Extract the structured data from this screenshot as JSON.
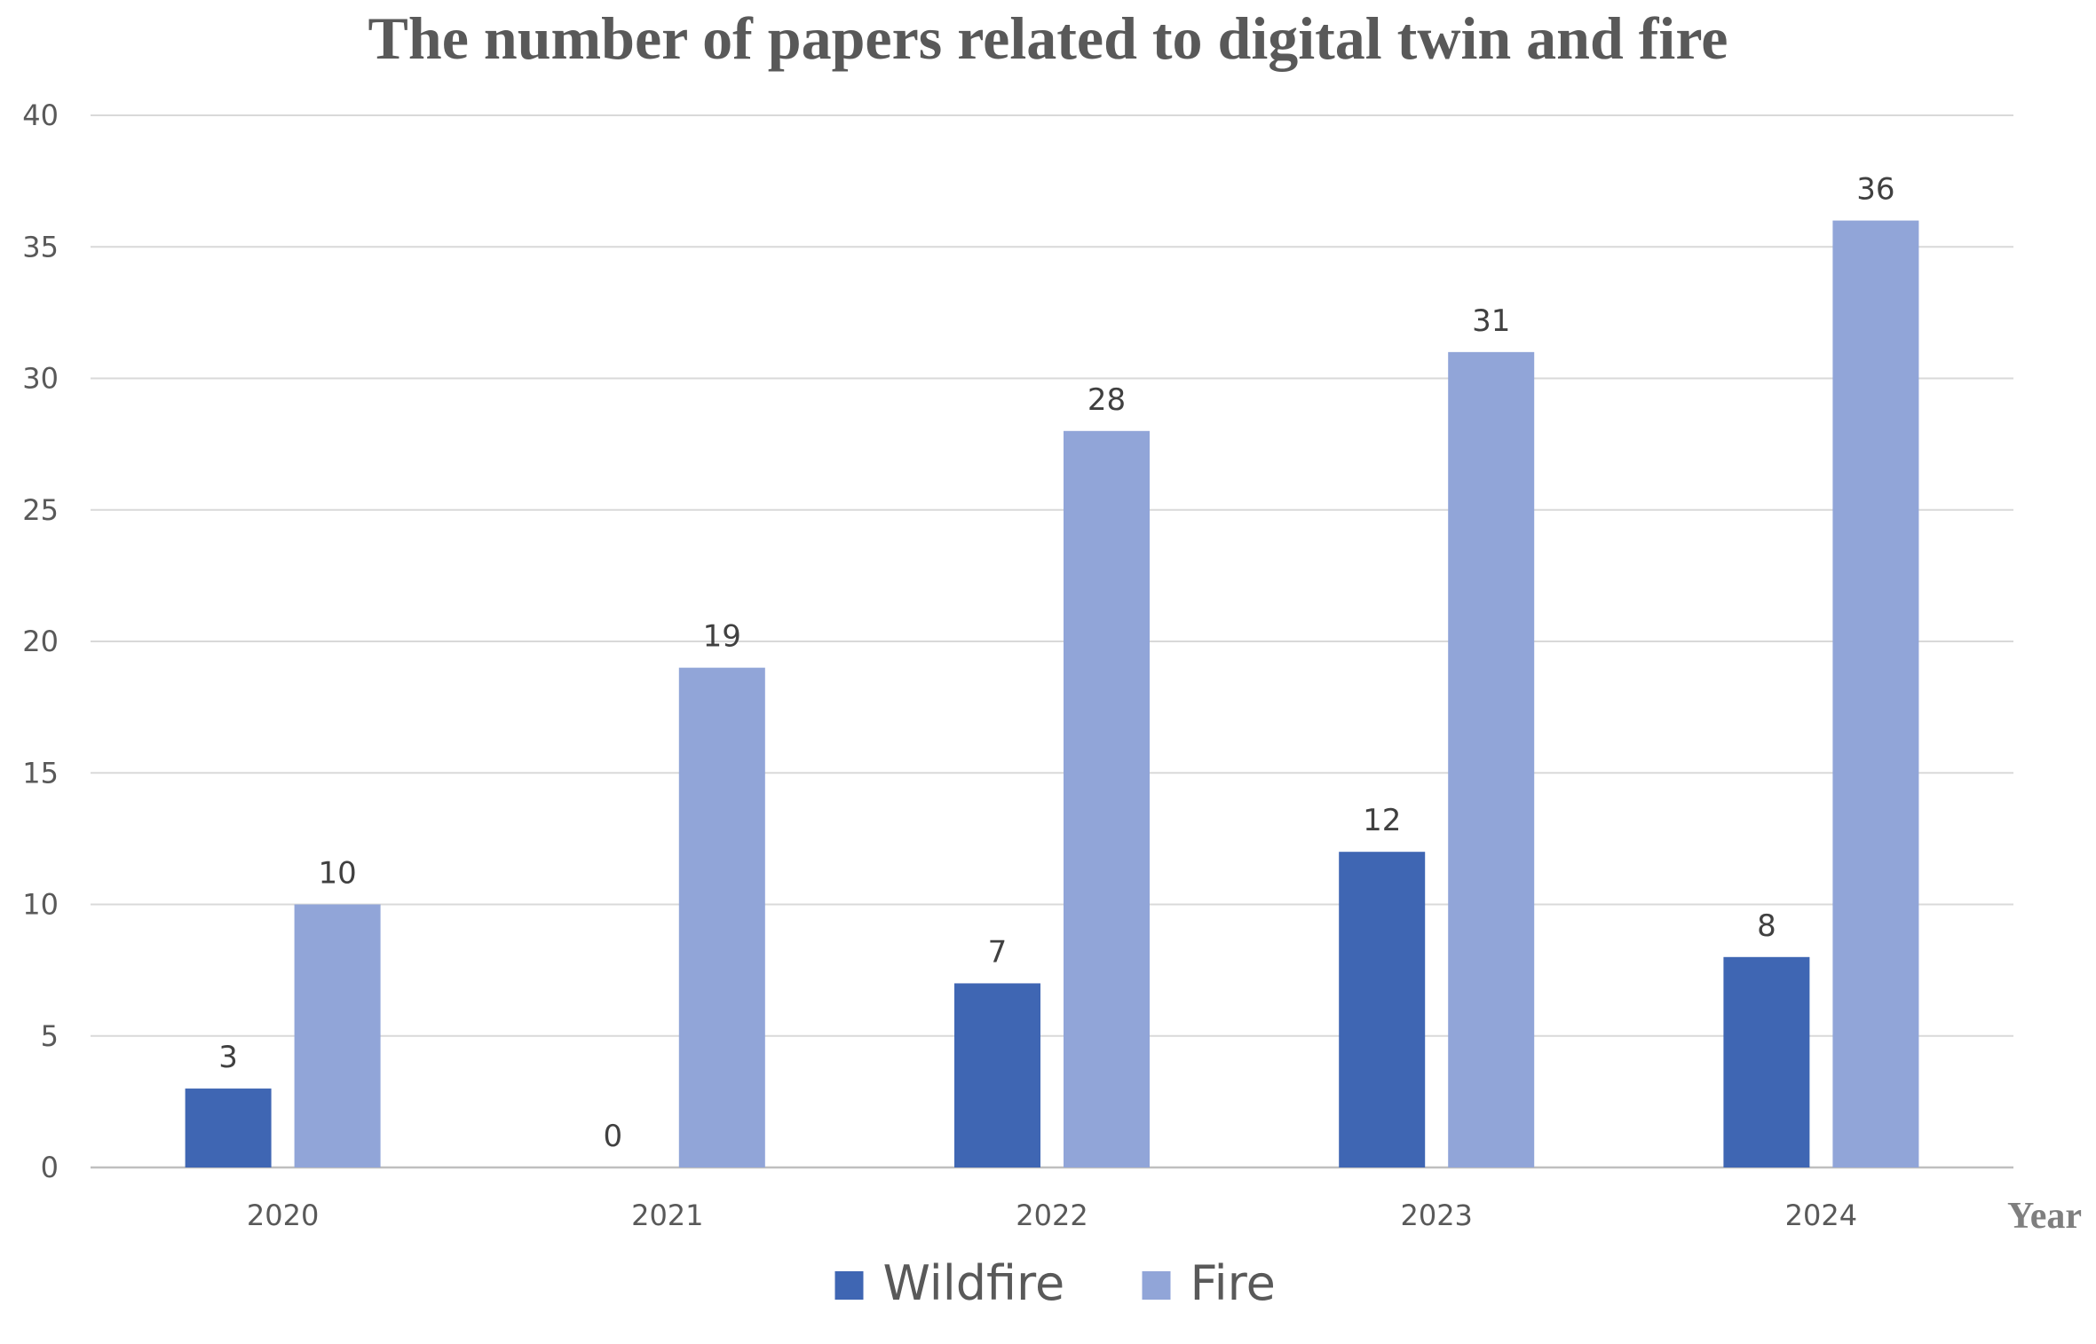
{
  "chart_data": {
    "type": "bar",
    "title": "The number of papers related to digital twin and fire",
    "xlabel": "Year",
    "ylabel": "",
    "categories": [
      "2020",
      "2021",
      "2022",
      "2023",
      "2024"
    ],
    "series": [
      {
        "name": "Wildfire",
        "values": [
          3,
          0,
          7,
          12,
          8
        ],
        "color": "#3f66b3"
      },
      {
        "name": "Fire",
        "values": [
          10,
          19,
          28,
          31,
          36
        ],
        "color": "#91a5d8"
      }
    ],
    "ylim": [
      0,
      40
    ],
    "yticks": [
      0,
      5,
      10,
      15,
      20,
      25,
      30,
      35,
      40
    ],
    "grid": true,
    "legend": "bottom-center",
    "data_labels": true
  }
}
